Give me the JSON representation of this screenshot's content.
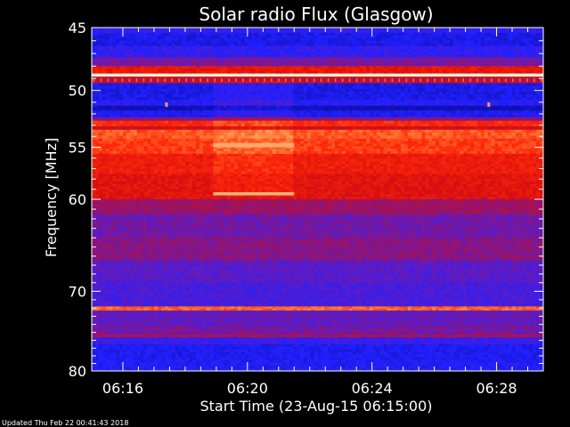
{
  "chart_data": {
    "type": "heatmap",
    "title": "Solar radio Flux (Glasgow)",
    "xlabel": "Start Time (23-Aug-15 06:15:00)",
    "ylabel": "Frequency [MHz]",
    "x_range": [
      "06:15:00",
      "06:29:30"
    ],
    "x_ticks": [
      "06:16",
      "06:20",
      "06:24",
      "06:28"
    ],
    "x_tick_minutes": [
      1,
      5,
      9,
      13
    ],
    "y_axis_scale": "log",
    "y_range_mhz": [
      45,
      80
    ],
    "y_ticks": [
      45,
      50,
      55,
      60,
      70,
      80
    ],
    "colormap": [
      "#1010b0",
      "#2020ff",
      "#5a1cc8",
      "#a0125c",
      "#d80f0f",
      "#ff2a0a",
      "#ff8a40",
      "#fff0d0"
    ],
    "background_color": "#000000",
    "text_color": "#ffffff",
    "bands": [
      {
        "f1": 45.0,
        "f2": 45.4,
        "level": 0.18
      },
      {
        "f1": 45.4,
        "f2": 46.4,
        "level": 0.1
      },
      {
        "f1": 46.4,
        "f2": 47.3,
        "level": 0.18
      },
      {
        "f1": 47.3,
        "f2": 48.0,
        "level": 0.34
      },
      {
        "f1": 48.0,
        "f2": 48.6,
        "level": 0.62
      },
      {
        "f1": 48.6,
        "f2": 48.85,
        "level": 0.96
      },
      {
        "f1": 48.85,
        "f2": 49.4,
        "level": 0.5
      },
      {
        "f1": 49.4,
        "f2": 50.8,
        "level": 0.1
      },
      {
        "f1": 50.8,
        "f2": 51.3,
        "level": 0.16
      },
      {
        "f1": 51.3,
        "f2": 51.7,
        "level": 0.0
      },
      {
        "f1": 51.7,
        "f2": 52.3,
        "level": 0.12
      },
      {
        "f1": 52.3,
        "f2": 52.6,
        "level": 0.38
      },
      {
        "f1": 52.6,
        "f2": 53.1,
        "level": 0.7
      },
      {
        "f1": 53.1,
        "f2": 53.4,
        "level": 0.55
      },
      {
        "f1": 53.4,
        "f2": 54.2,
        "level": 0.78
      },
      {
        "f1": 54.2,
        "f2": 55.6,
        "level": 0.74
      },
      {
        "f1": 55.6,
        "f2": 57.5,
        "level": 0.65
      },
      {
        "f1": 57.5,
        "f2": 60.0,
        "level": 0.6
      },
      {
        "f1": 60.0,
        "f2": 61.5,
        "level": 0.42
      },
      {
        "f1": 61.5,
        "f2": 64.0,
        "level": 0.33
      },
      {
        "f1": 64.0,
        "f2": 66.5,
        "level": 0.38
      },
      {
        "f1": 66.5,
        "f2": 69.0,
        "level": 0.28
      },
      {
        "f1": 69.0,
        "f2": 71.8,
        "level": 0.24
      },
      {
        "f1": 71.8,
        "f2": 72.3,
        "level": 0.8
      },
      {
        "f1": 72.3,
        "f2": 74.2,
        "level": 0.3
      },
      {
        "f1": 74.2,
        "f2": 75.3,
        "level": 0.34
      },
      {
        "f1": 75.3,
        "f2": 75.6,
        "level": 0.48
      },
      {
        "f1": 75.6,
        "f2": 76.5,
        "level": 0.2
      },
      {
        "f1": 76.5,
        "f2": 78.5,
        "level": 0.12
      },
      {
        "f1": 78.5,
        "f2": 80.0,
        "level": 0.14
      }
    ],
    "features": [
      {
        "name": "enhanced-patch",
        "t1": 3.9,
        "t2": 6.5,
        "f1": 49.3,
        "f2": 59.8,
        "boost": 0.06
      },
      {
        "name": "bright-line-upper",
        "t1": 3.9,
        "t2": 6.5,
        "f1": 54.6,
        "f2": 55.0,
        "level": 0.9
      },
      {
        "name": "bright-line-lower",
        "t1": 3.9,
        "t2": 6.5,
        "f1": 59.3,
        "f2": 59.6,
        "level": 0.92
      },
      {
        "name": "white-line",
        "t1": 0.0,
        "t2": 14.5,
        "f1": 48.65,
        "f2": 48.85,
        "level": 1.0
      }
    ],
    "spots_mhz": [
      51.2,
      51.2
    ],
    "spots_min": [
      2.4,
      12.75
    ]
  },
  "footer": {
    "updated": "Updated Thu Feb 22 00:41:43 2018"
  }
}
